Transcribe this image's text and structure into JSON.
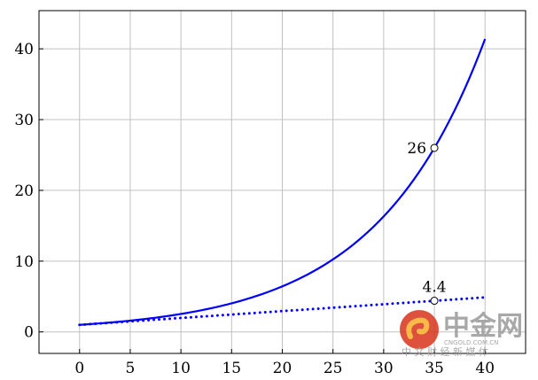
{
  "chart_data": {
    "type": "line",
    "title": "",
    "xlabel": "",
    "ylabel": "",
    "xlim": [
      -4,
      44
    ],
    "ylim": [
      -3.04,
      45.4
    ],
    "grid": true,
    "x_ticks": [
      0,
      5,
      10,
      15,
      20,
      25,
      30,
      35,
      40
    ],
    "y_ticks": [
      0,
      10,
      20,
      30,
      40
    ],
    "series": [
      {
        "style": "solid",
        "color": "#0000ff",
        "function": "exponential",
        "x": [
          0,
          5,
          10,
          15,
          20,
          25,
          30,
          35,
          40
        ],
        "values": [
          1,
          1.59,
          2.54,
          4.05,
          6.44,
          10.26,
          16.34,
          26,
          41.4
        ]
      },
      {
        "style": "dotted",
        "color": "#0000ff",
        "function": "linear",
        "x": [
          0,
          40
        ],
        "values": [
          1,
          4.88
        ]
      }
    ],
    "annotations": [
      {
        "x": 35,
        "y": 26,
        "label": "26",
        "position": "left"
      },
      {
        "x": 35,
        "y": 4.4,
        "label": "4.4",
        "position": "above"
      }
    ]
  },
  "watermark": {
    "logo_text": "中金网",
    "domain": "CNGOLD.COM.CN",
    "tagline": "中 文 财 经 新 媒 体"
  }
}
